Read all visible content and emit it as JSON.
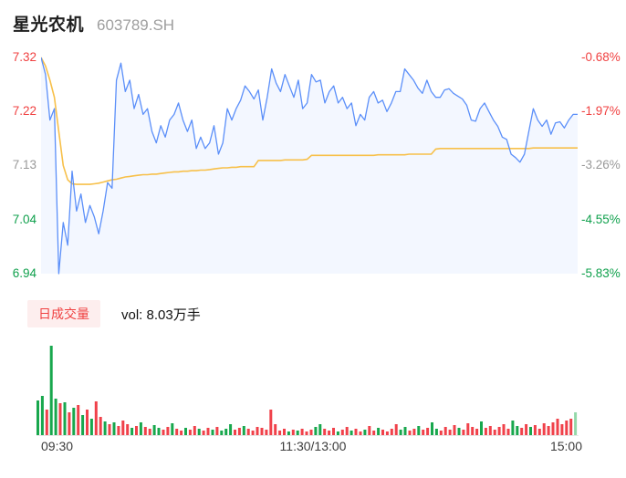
{
  "header": {
    "stock_name": "星光农机",
    "stock_code": "603789.SH"
  },
  "price_chart": {
    "y_left": [
      {
        "label": "7.32",
        "color": "#f04141"
      },
      {
        "label": "7.22",
        "color": "#f04141"
      },
      {
        "label": "7.13",
        "color": "#999999"
      },
      {
        "label": "7.04",
        "color": "#0fa04c"
      },
      {
        "label": "6.94",
        "color": "#0fa04c"
      }
    ],
    "y_right": [
      {
        "label": "-0.68%",
        "color": "#f04141"
      },
      {
        "label": "-1.97%",
        "color": "#f04141"
      },
      {
        "label": "-3.26%",
        "color": "#999999"
      },
      {
        "label": "-4.55%",
        "color": "#0fa04c"
      },
      {
        "label": "-5.83%",
        "color": "#0fa04c"
      }
    ],
    "x_labels": {
      "open": "09:30",
      "mid": "11:30/13:00",
      "close": "15:00"
    }
  },
  "volume_legend": {
    "badge": "日成交量",
    "vol_text": "vol: 8.03万手"
  },
  "colors": {
    "price_line": "#5b8ff9",
    "price_fill": "rgba(91,143,249,0.07)",
    "avg_line": "#f7c04a",
    "vol_up": "#f0414a",
    "vol_down": "#18a74d",
    "vol_current": "#93d8a9",
    "axis_gray": "#999999"
  },
  "chart_data": {
    "type": "line",
    "title": "星光农机 603789.SH 分时走势",
    "sessions": [
      "09:30-11:30",
      "13:00-15:00"
    ],
    "minutes_step": 2,
    "price_axis": {
      "ticks": [
        7.32,
        7.22,
        7.13,
        7.04,
        6.94
      ],
      "ylim": [
        6.94,
        7.32
      ]
    },
    "pct_axis": {
      "ticks": [
        "-0.68%",
        "-1.97%",
        "-3.26%",
        "-4.55%",
        "-5.83%"
      ]
    },
    "x_ticks": [
      "09:30",
      "11:30/13:00",
      "15:00"
    ],
    "volume_total": "8.03万手",
    "series": [
      {
        "name": "price",
        "type": "line",
        "values": [
          7.32,
          7.29,
          7.21,
          7.23,
          6.94,
          7.03,
          6.99,
          7.12,
          7.05,
          7.08,
          7.03,
          7.06,
          7.04,
          7.01,
          7.05,
          7.1,
          7.09,
          7.28,
          7.31,
          7.26,
          7.28,
          7.23,
          7.255,
          7.22,
          7.23,
          7.19,
          7.17,
          7.2,
          7.18,
          7.21,
          7.22,
          7.24,
          7.21,
          7.19,
          7.21,
          7.16,
          7.18,
          7.16,
          7.17,
          7.2,
          7.15,
          7.17,
          7.23,
          7.21,
          7.23,
          7.245,
          7.27,
          7.26,
          7.247,
          7.263,
          7.21,
          7.25,
          7.3,
          7.275,
          7.26,
          7.29,
          7.27,
          7.25,
          7.28,
          7.23,
          7.24,
          7.29,
          7.277,
          7.28,
          7.24,
          7.26,
          7.27,
          7.24,
          7.25,
          7.23,
          7.24,
          7.2,
          7.22,
          7.21,
          7.25,
          7.26,
          7.24,
          7.245,
          7.225,
          7.24,
          7.26,
          7.26,
          7.3,
          7.29,
          7.28,
          7.266,
          7.257,
          7.28,
          7.26,
          7.25,
          7.25,
          7.263,
          7.265,
          7.257,
          7.252,
          7.247,
          7.236,
          7.21,
          7.208,
          7.23,
          7.24,
          7.225,
          7.21,
          7.199,
          7.18,
          7.176,
          7.15,
          7.144,
          7.136,
          7.15,
          7.19,
          7.23,
          7.21,
          7.199,
          7.21,
          7.185,
          7.205,
          7.207,
          7.196,
          7.21,
          7.22,
          7.22
        ]
      },
      {
        "name": "avg_price",
        "type": "line",
        "values": [
          7.32,
          7.305,
          7.28,
          7.25,
          7.19,
          7.13,
          7.105,
          7.098,
          7.097,
          7.097,
          7.097,
          7.097,
          7.098,
          7.099,
          7.101,
          7.103,
          7.105,
          7.106,
          7.108,
          7.11,
          7.111,
          7.112,
          7.113,
          7.114,
          7.114,
          7.115,
          7.115,
          7.116,
          7.117,
          7.118,
          7.119,
          7.119,
          7.12,
          7.12,
          7.121,
          7.121,
          7.122,
          7.122,
          7.123,
          7.124,
          7.125,
          7.126,
          7.126,
          7.127,
          7.127,
          7.128,
          7.128,
          7.128,
          7.128,
          7.139,
          7.139,
          7.139,
          7.139,
          7.139,
          7.139,
          7.14,
          7.14,
          7.14,
          7.14,
          7.14,
          7.141,
          7.148,
          7.148,
          7.148,
          7.148,
          7.148,
          7.148,
          7.148,
          7.148,
          7.148,
          7.148,
          7.148,
          7.148,
          7.148,
          7.148,
          7.148,
          7.149,
          7.149,
          7.149,
          7.149,
          7.149,
          7.149,
          7.149,
          7.15,
          7.15,
          7.15,
          7.15,
          7.15,
          7.15,
          7.159,
          7.16,
          7.16,
          7.16,
          7.16,
          7.16,
          7.16,
          7.16,
          7.16,
          7.16,
          7.16,
          7.16,
          7.16,
          7.16,
          7.16,
          7.16,
          7.16,
          7.16,
          7.16,
          7.16,
          7.16,
          7.16,
          7.161,
          7.161,
          7.161,
          7.161,
          7.161,
          7.161,
          7.161,
          7.161,
          7.161,
          7.161,
          7.161
        ]
      },
      {
        "name": "volume",
        "type": "bar",
        "unit": "relative_height_px",
        "values": [
          38,
          43,
          28,
          98,
          40,
          35,
          36,
          25,
          30,
          33,
          22,
          28,
          18,
          37,
          20,
          15,
          12,
          14,
          10,
          16,
          12,
          8,
          10,
          14,
          9,
          7,
          11,
          8,
          6,
          9,
          13,
          7,
          5,
          8,
          6,
          10,
          7,
          5,
          8,
          6,
          9,
          5,
          7,
          12,
          6,
          8,
          10,
          7,
          5,
          9,
          8,
          6,
          28,
          12,
          5,
          7,
          4,
          6,
          5,
          7,
          4,
          6,
          9,
          12,
          7,
          5,
          8,
          4,
          6,
          9,
          5,
          7,
          4,
          6,
          10,
          5,
          8,
          6,
          4,
          7,
          12,
          6,
          9,
          5,
          7,
          10,
          6,
          8,
          14,
          7,
          5,
          9,
          6,
          11,
          8,
          6,
          13,
          9,
          7,
          15,
          8,
          10,
          6,
          9,
          12,
          7,
          16,
          10,
          8,
          12,
          9,
          11,
          7,
          13,
          10,
          14,
          18,
          12,
          16,
          18,
          25
        ],
        "colors": [
          "g",
          "g",
          "r",
          "g",
          "g",
          "r",
          "g",
          "r",
          "g",
          "r",
          "g",
          "r",
          "g",
          "r",
          "r",
          "g",
          "r",
          "g",
          "r",
          "r",
          "r",
          "g",
          "r",
          "g",
          "r",
          "r",
          "g",
          "g",
          "r",
          "r",
          "g",
          "r",
          "r",
          "g",
          "r",
          "r",
          "g",
          "r",
          "r",
          "g",
          "r",
          "g",
          "g",
          "g",
          "r",
          "r",
          "g",
          "r",
          "r",
          "r",
          "r",
          "r",
          "r",
          "r",
          "r",
          "r",
          "g",
          "r",
          "g",
          "r",
          "r",
          "r",
          "g",
          "g",
          "r",
          "r",
          "r",
          "g",
          "r",
          "r",
          "g",
          "r",
          "r",
          "g",
          "r",
          "r",
          "g",
          "r",
          "r",
          "r",
          "r",
          "g",
          "g",
          "r",
          "r",
          "g",
          "r",
          "r",
          "g",
          "g",
          "r",
          "r",
          "r",
          "r",
          "g",
          "r",
          "r",
          "r",
          "r",
          "g",
          "r",
          "r",
          "r",
          "r",
          "r",
          "r",
          "g",
          "g",
          "r",
          "r",
          "g",
          "r",
          "r",
          "r",
          "r",
          "r",
          "r",
          "r",
          "r",
          "r",
          "lg"
        ]
      }
    ]
  }
}
